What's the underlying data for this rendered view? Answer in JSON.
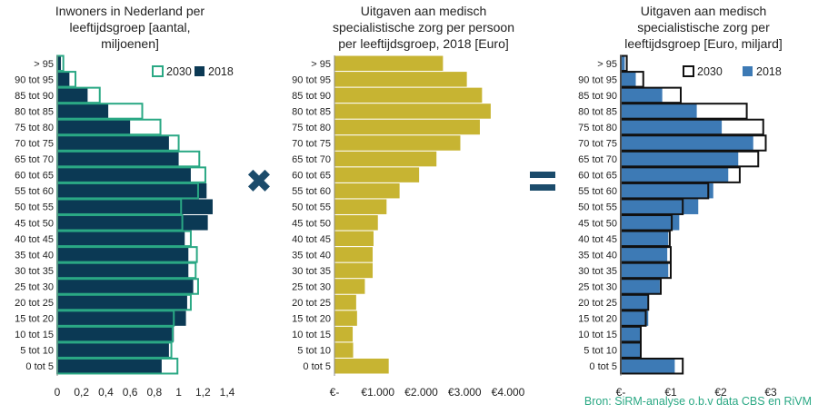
{
  "colors": {
    "navy": "#0b3954",
    "teal": "#2aa884",
    "gold": "#c7b432",
    "blue": "#3d7ab5",
    "outline_black": "#111111",
    "operator": "#1b4b6b"
  },
  "operators": {
    "multiply": "✖",
    "equals": "="
  },
  "source_note": "Bron: SiRM-analyse o.b.v data CBS en RiVM",
  "chart_data": [
    {
      "type": "bar",
      "orientation": "horizontal",
      "title_lines": [
        "Inwoners in Nederland per",
        "leeftijdsgroep [aantal,",
        "miljoenen]"
      ],
      "categories": [
        "> 95",
        "90 tot 95",
        "85 tot 90",
        "80 tot 85",
        "75 tot 80",
        "70 tot 75",
        "65 tot 70",
        "60 tot 65",
        "55 tot 60",
        "50 tot 55",
        "45 tot 50",
        "40 tot 45",
        "35 tot 40",
        "30 tot 35",
        "25 tot 30",
        "20 tot 25",
        "15 tot 20",
        "10 tot 15",
        "5 tot 10",
        "0 tot 5"
      ],
      "series": [
        {
          "name": "2018",
          "style": "filled",
          "color": "#0b3954",
          "values": [
            0.03,
            0.1,
            0.25,
            0.42,
            0.6,
            0.92,
            1.0,
            1.1,
            1.23,
            1.28,
            1.24,
            1.05,
            1.08,
            1.08,
            1.12,
            1.07,
            1.06,
            0.96,
            0.92,
            0.86
          ]
        },
        {
          "name": "2030",
          "style": "outline",
          "color": "#2aa884",
          "values": [
            0.05,
            0.15,
            0.35,
            0.7,
            0.85,
            1.0,
            1.17,
            1.22,
            1.16,
            1.02,
            1.03,
            1.1,
            1.15,
            1.14,
            1.16,
            1.1,
            0.96,
            0.95,
            0.94,
            0.99
          ]
        }
      ],
      "legend": {
        "position": "top-right",
        "entries": [
          "2030",
          "2018"
        ]
      },
      "xlim": [
        0,
        1.4
      ],
      "xticks": [
        0,
        0.2,
        0.4,
        0.6,
        0.8,
        1,
        1.2,
        1.4
      ],
      "xtick_labels": [
        "0",
        "0,2",
        "0,4",
        "0,6",
        "0,8",
        "1",
        "1,2",
        "1,4"
      ]
    },
    {
      "type": "bar",
      "orientation": "horizontal",
      "title_lines": [
        "Uitgaven aan medisch",
        "specialistische zorg per persoon",
        "per leeftijdsgroep, 2018 [Euro]"
      ],
      "categories": [
        "> 95",
        "90 tot 95",
        "85 tot 90",
        "80 tot 85",
        "75 tot 80",
        "70 tot 75",
        "65 tot 70",
        "60 tot 65",
        "55 tot 60",
        "50 tot 55",
        "45 tot 50",
        "40 tot 45",
        "35 tot 40",
        "30 tot 35",
        "25 tot 30",
        "20 tot 25",
        "15 tot 20",
        "10 tot 15",
        "5 tot 10",
        "0 tot 5"
      ],
      "series": [
        {
          "style": "filled",
          "color": "#c7b432",
          "values": [
            2500,
            3050,
            3400,
            3600,
            3350,
            2900,
            2350,
            1950,
            1500,
            1200,
            1000,
            900,
            880,
            880,
            700,
            500,
            520,
            420,
            430,
            1250
          ]
        }
      ],
      "xlim": [
        0,
        4000
      ],
      "xticks": [
        0,
        1000,
        2000,
        3000,
        4000
      ],
      "xtick_labels": [
        "€-",
        "€1.000",
        "€2.000",
        "€3.000",
        "€4.000"
      ]
    },
    {
      "type": "bar",
      "orientation": "horizontal",
      "title_lines": [
        "Uitgaven aan medisch",
        "specialistische zorg per",
        "leeftijdsgroep [Euro, miljard]"
      ],
      "categories": [
        "> 95",
        "90 tot 95",
        "85 tot 90",
        "80 tot 85",
        "75 tot 80",
        "70 tot 75",
        "65 tot 70",
        "60 tot 65",
        "55 tot 60",
        "50 tot 55",
        "45 tot 50",
        "40 tot 45",
        "35 tot 40",
        "30 tot 35",
        "25 tot 30",
        "20 tot 25",
        "15 tot 20",
        "10 tot 15",
        "5 tot 10",
        "0 tot 5"
      ],
      "series": [
        {
          "name": "2018",
          "style": "filled",
          "color": "#3d7ab5",
          "values": [
            0.08,
            0.3,
            0.83,
            1.52,
            2.02,
            2.65,
            2.35,
            2.15,
            1.85,
            1.55,
            1.17,
            0.95,
            0.93,
            0.95,
            0.78,
            0.54,
            0.55,
            0.4,
            0.4,
            1.08
          ]
        },
        {
          "name": "2030",
          "style": "outline",
          "color": "#111111",
          "values": [
            0.12,
            0.45,
            1.2,
            2.52,
            2.85,
            2.9,
            2.75,
            2.38,
            1.75,
            1.24,
            1.02,
            0.98,
            1.0,
            1.0,
            0.8,
            0.55,
            0.5,
            0.4,
            0.4,
            1.24
          ]
        }
      ],
      "legend": {
        "position": "top-right",
        "entries": [
          "2030",
          "2018"
        ]
      },
      "xlim": [
        0,
        3
      ],
      "xticks": [
        0,
        1,
        2,
        3
      ],
      "xtick_labels": [
        "€-",
        "€1",
        "€2",
        "€3"
      ]
    }
  ]
}
